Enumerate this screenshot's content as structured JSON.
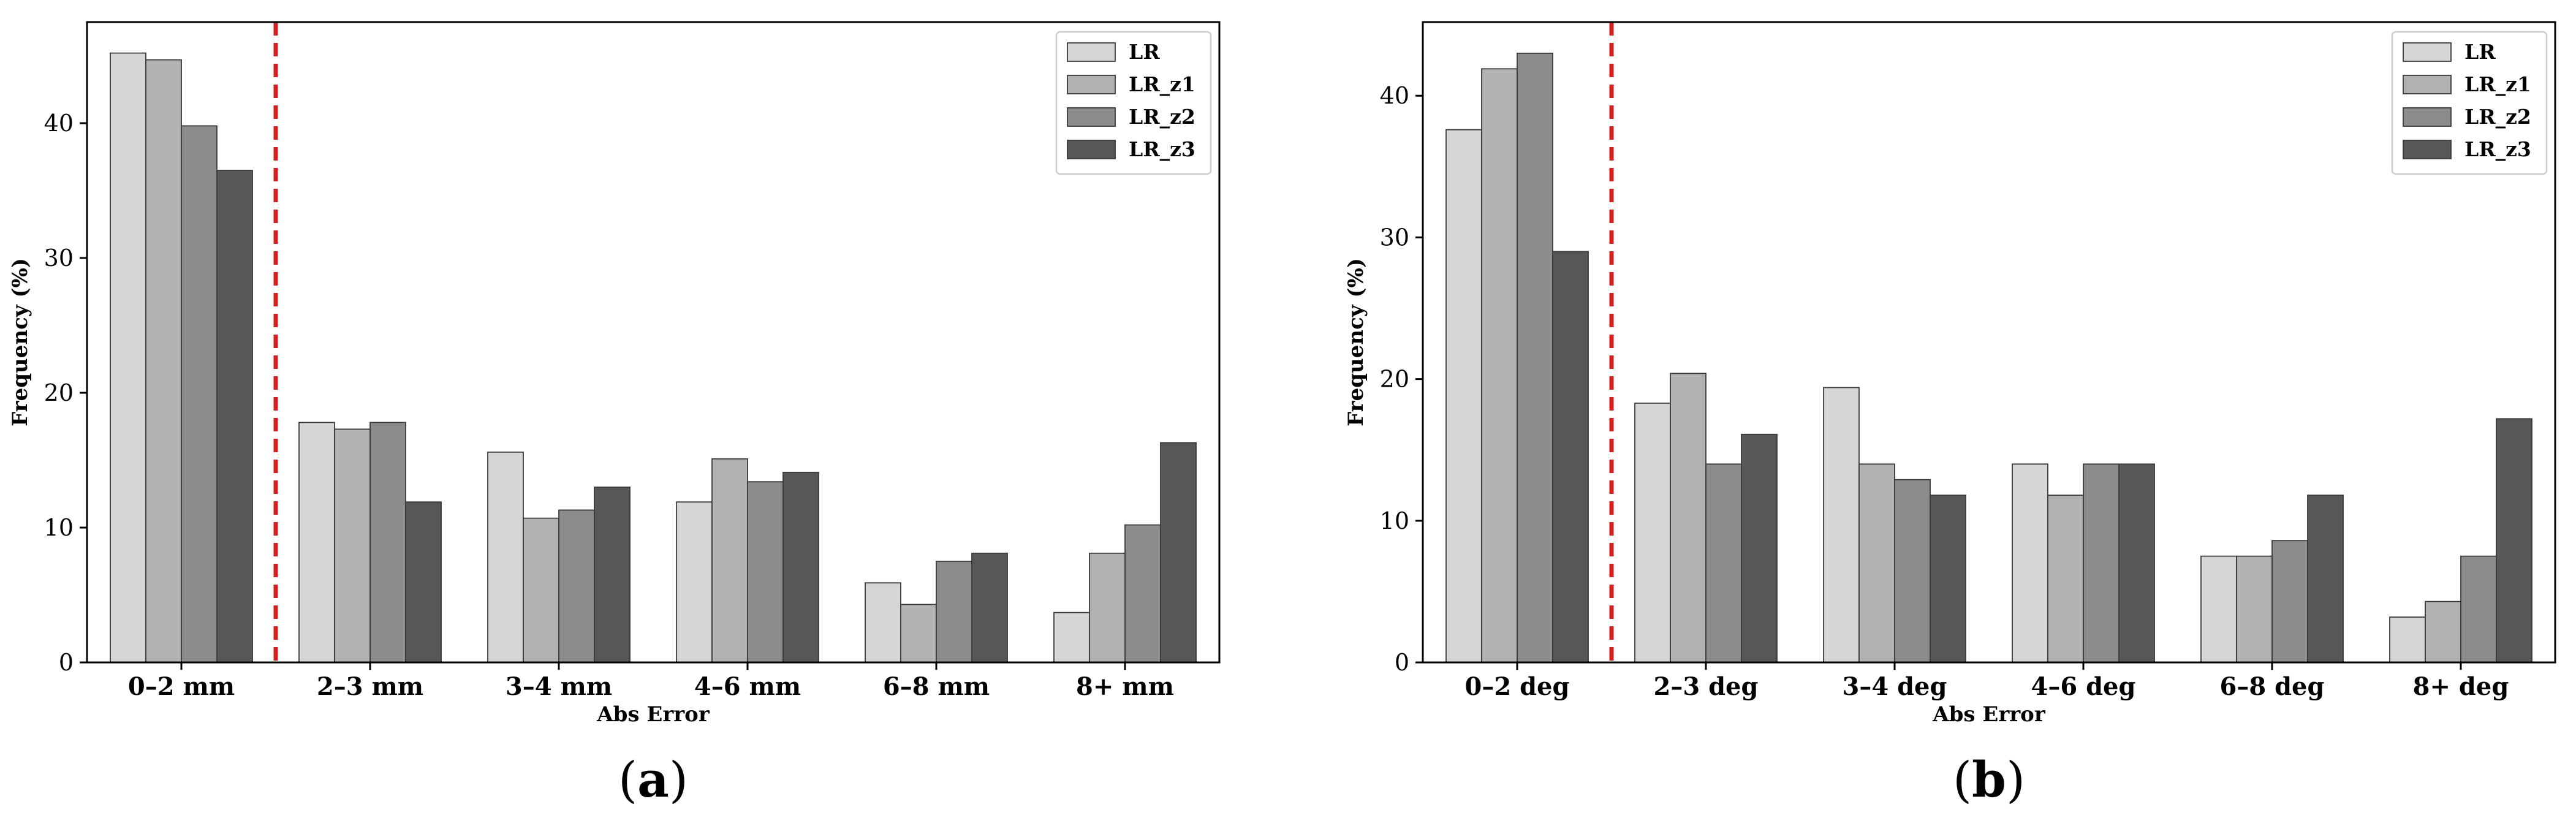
{
  "colors": {
    "LR": "#d6d6d6",
    "LR_z1": "#b2b2b2",
    "LR_z2": "#8c8c8c",
    "LR_z3": "#575757",
    "threshold": "#d62020"
  },
  "chart_data": [
    {
      "type": "bar",
      "panel": "(a)",
      "panel_parts": [
        "(",
        "a",
        ")"
      ],
      "categories": [
        "0–2 mm",
        "2–3 mm",
        "3–4 mm",
        "4–6 mm",
        "6–8 mm",
        "8+ mm"
      ],
      "series": [
        {
          "name": "LR",
          "values": [
            45.2,
            17.8,
            15.6,
            11.9,
            5.9,
            3.7
          ]
        },
        {
          "name": "LR_z1",
          "values": [
            44.7,
            17.3,
            10.7,
            15.1,
            4.3,
            8.1
          ]
        },
        {
          "name": "LR_z2",
          "values": [
            39.8,
            17.8,
            11.3,
            13.4,
            7.5,
            10.2
          ]
        },
        {
          "name": "LR_z3",
          "values": [
            36.5,
            11.9,
            13.0,
            14.1,
            8.1,
            16.3
          ]
        }
      ],
      "legend_labels": [
        "LR",
        "LR_z1",
        "LR_z2",
        "LR_z3"
      ],
      "legend_position": "top-right",
      "xlabel": "Abs Error",
      "ylabel": "Frequency (%)",
      "ylim": [
        0,
        47.5
      ],
      "yticks": [
        0,
        10,
        20,
        30,
        40
      ],
      "threshold_after_category": 0,
      "grid": false
    },
    {
      "type": "bar",
      "panel": "(b)",
      "panel_parts": [
        "(",
        "b",
        ")"
      ],
      "categories": [
        "0–2 deg",
        "2–3 deg",
        "3–4 deg",
        "4–6 deg",
        "6–8 deg",
        "8+ deg"
      ],
      "series": [
        {
          "name": "LR",
          "values": [
            37.6,
            18.3,
            19.4,
            14.0,
            7.5,
            3.2
          ]
        },
        {
          "name": "LR_z1",
          "values": [
            41.9,
            20.4,
            14.0,
            11.8,
            7.5,
            4.3
          ]
        },
        {
          "name": "LR_z2",
          "values": [
            43.0,
            14.0,
            12.9,
            14.0,
            8.6,
            7.5
          ]
        },
        {
          "name": "LR_z3",
          "values": [
            29.0,
            16.1,
            11.8,
            14.0,
            11.8,
            17.2
          ]
        }
      ],
      "legend_labels": [
        "LR",
        "LR_z1",
        "LR_z2",
        "LR_z3"
      ],
      "legend_position": "top-right",
      "xlabel": "Abs Error",
      "ylabel": "Frequency (%)",
      "ylim": [
        0,
        45.2
      ],
      "yticks": [
        0,
        10,
        20,
        30,
        40
      ],
      "threshold_after_category": 0,
      "grid": false
    }
  ]
}
